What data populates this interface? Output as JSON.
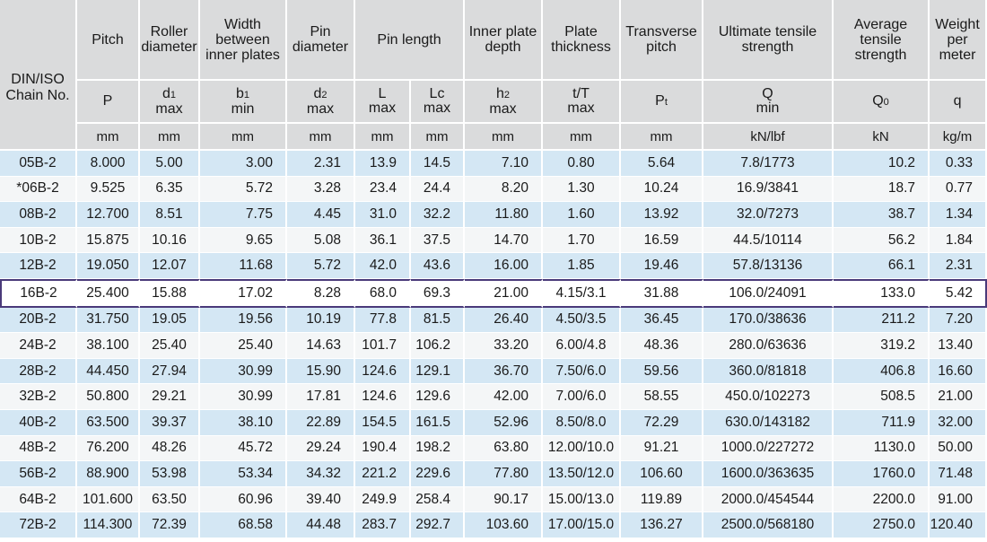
{
  "headers": {
    "chain": "DIN/ISO Chain No.",
    "pitch": "Pitch",
    "roller": "Roller diameter",
    "width": "Width between inner plates",
    "pin_dia": "Pin diameter",
    "pin_len": "Pin length",
    "inner_plate": "Inner plate depth",
    "plate_thk": "Plate thickness",
    "transverse": "Transverse pitch",
    "ultimate": "Ultimate tensile strength",
    "average": "Average tensile strength",
    "weight": "Weight per meter"
  },
  "symbols": {
    "p": "P",
    "d1": "d",
    "d1_sub": "1",
    "d1_lim": "max",
    "b1": "b",
    "b1_sub": "1",
    "b1_lim": "min",
    "d2": "d",
    "d2_sub": "2",
    "d2_lim": "max",
    "l": "L",
    "l_lim": "max",
    "lc": "Lc",
    "lc_lim": "max",
    "h2": "h",
    "h2_sub": "2",
    "h2_lim": "max",
    "t": "t/T",
    "t_lim": "max",
    "pt": "P",
    "pt_sub": "t",
    "q": "Q",
    "q_lim": "min",
    "q0": "Q",
    "q0_sub": "0",
    "w": "q"
  },
  "units": [
    "mm",
    "mm",
    "mm",
    "mm",
    "mm",
    "mm",
    "mm",
    "mm",
    "mm",
    "kN/lbf",
    "kN",
    "kg/m"
  ],
  "rows": [
    [
      "05B-2",
      "8.000",
      "5.00",
      "3.00",
      "2.31",
      "13.9",
      "14.5",
      "7.10",
      "0.80",
      "5.64",
      "7.8/1773",
      "10.2",
      "0.33"
    ],
    [
      "*06B-2",
      "9.525",
      "6.35",
      "5.72",
      "3.28",
      "23.4",
      "24.4",
      "8.20",
      "1.30",
      "10.24",
      "16.9/3841",
      "18.7",
      "0.77"
    ],
    [
      "08B-2",
      "12.700",
      "8.51",
      "7.75",
      "4.45",
      "31.0",
      "32.2",
      "11.80",
      "1.60",
      "13.92",
      "32.0/7273",
      "38.7",
      "1.34"
    ],
    [
      "10B-2",
      "15.875",
      "10.16",
      "9.65",
      "5.08",
      "36.1",
      "37.5",
      "14.70",
      "1.70",
      "16.59",
      "44.5/10114",
      "56.2",
      "1.84"
    ],
    [
      "12B-2",
      "19.050",
      "12.07",
      "11.68",
      "5.72",
      "42.0",
      "43.6",
      "16.00",
      "1.85",
      "19.46",
      "57.8/13136",
      "66.1",
      "2.31"
    ],
    [
      "16B-2",
      "25.400",
      "15.88",
      "17.02",
      "8.28",
      "68.0",
      "69.3",
      "21.00",
      "4.15/3.1",
      "31.88",
      "106.0/24091",
      "133.0",
      "5.42"
    ],
    [
      "20B-2",
      "31.750",
      "19.05",
      "19.56",
      "10.19",
      "77.8",
      "81.5",
      "26.40",
      "4.50/3.5",
      "36.45",
      "170.0/38636",
      "211.2",
      "7.20"
    ],
    [
      "24B-2",
      "38.100",
      "25.40",
      "25.40",
      "14.63",
      "101.7",
      "106.2",
      "33.20",
      "6.00/4.8",
      "48.36",
      "280.0/63636",
      "319.2",
      "13.40"
    ],
    [
      "28B-2",
      "44.450",
      "27.94",
      "30.99",
      "15.90",
      "124.6",
      "129.1",
      "36.70",
      "7.50/6.0",
      "59.56",
      "360.0/81818",
      "406.8",
      "16.60"
    ],
    [
      "32B-2",
      "50.800",
      "29.21",
      "30.99",
      "17.81",
      "124.6",
      "129.6",
      "42.00",
      "7.00/6.0",
      "58.55",
      "450.0/102273",
      "508.5",
      "21.00"
    ],
    [
      "40B-2",
      "63.500",
      "39.37",
      "38.10",
      "22.89",
      "154.5",
      "161.5",
      "52.96",
      "8.50/8.0",
      "72.29",
      "630.0/143182",
      "711.9",
      "32.00"
    ],
    [
      "48B-2",
      "76.200",
      "48.26",
      "45.72",
      "29.24",
      "190.4",
      "198.2",
      "63.80",
      "12.00/10.0",
      "91.21",
      "1000.0/227272",
      "1130.0",
      "50.00"
    ],
    [
      "56B-2",
      "88.900",
      "53.98",
      "53.34",
      "34.32",
      "221.2",
      "229.6",
      "77.80",
      "13.50/12.0",
      "106.60",
      "1600.0/363635",
      "1760.0",
      "71.48"
    ],
    [
      "64B-2",
      "101.600",
      "63.50",
      "60.96",
      "39.40",
      "249.9",
      "258.4",
      "90.17",
      "15.00/13.0",
      "119.89",
      "2000.0/454544",
      "2200.0",
      "91.00"
    ],
    [
      "72B-2",
      "114.300",
      "72.39",
      "68.58",
      "44.48",
      "283.7",
      "292.7",
      "103.60",
      "17.00/15.0",
      "136.27",
      "2500.0/568180",
      "2750.0",
      "120.40"
    ]
  ],
  "highlighted_row": "16B-2",
  "colors": {
    "header_bg": "#dadbdc",
    "row_blue": "#d4e7f4",
    "row_white": "#f4f6f7",
    "highlight_border": "#4a3a7a"
  }
}
